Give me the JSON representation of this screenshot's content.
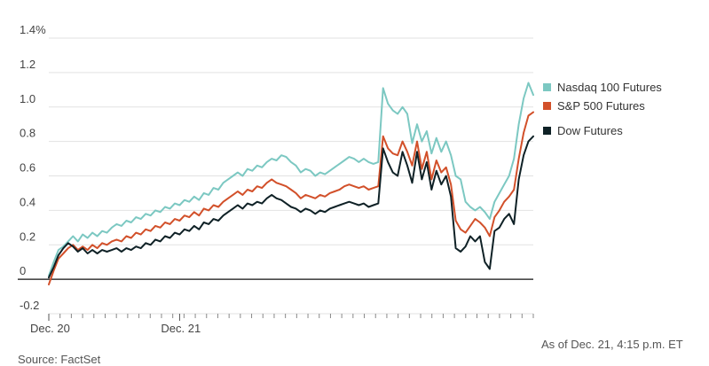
{
  "chart_data": {
    "type": "line",
    "title": "",
    "xlabel": "",
    "ylabel": "",
    "ylim": [
      -0.2,
      1.4
    ],
    "y_ticks": [
      {
        "value": 1.4,
        "label": "1.4%"
      },
      {
        "value": 1.2,
        "label": "1.2"
      },
      {
        "value": 1.0,
        "label": "1.0"
      },
      {
        "value": 0.8,
        "label": "0.8"
      },
      {
        "value": 0.6,
        "label": "0.6"
      },
      {
        "value": 0.4,
        "label": "0.4"
      },
      {
        "value": 0.2,
        "label": "0.2"
      },
      {
        "value": 0,
        "label": "0"
      },
      {
        "value": -0.2,
        "label": "-0.2"
      }
    ],
    "x_range": [
      0,
      100
    ],
    "x_labels": [
      {
        "x": 0,
        "label": "Dec. 20"
      },
      {
        "x": 27,
        "label": "Dec. 21"
      }
    ],
    "x_tick_count": 44,
    "grid": true,
    "legend_position": "right",
    "series": [
      {
        "name": "Nasdaq 100 Futures",
        "color": "#7cc8c2",
        "points": [
          [
            0,
            0.02
          ],
          [
            1,
            0.1
          ],
          [
            2,
            0.17
          ],
          [
            3,
            0.19
          ],
          [
            4,
            0.22
          ],
          [
            5,
            0.25
          ],
          [
            6,
            0.22
          ],
          [
            7,
            0.26
          ],
          [
            8,
            0.24
          ],
          [
            9,
            0.27
          ],
          [
            10,
            0.25
          ],
          [
            11,
            0.28
          ],
          [
            12,
            0.27
          ],
          [
            13,
            0.3
          ],
          [
            14,
            0.32
          ],
          [
            15,
            0.31
          ],
          [
            16,
            0.34
          ],
          [
            17,
            0.33
          ],
          [
            18,
            0.36
          ],
          [
            19,
            0.35
          ],
          [
            20,
            0.38
          ],
          [
            21,
            0.37
          ],
          [
            22,
            0.4
          ],
          [
            23,
            0.39
          ],
          [
            24,
            0.42
          ],
          [
            25,
            0.41
          ],
          [
            26,
            0.44
          ],
          [
            27,
            0.43
          ],
          [
            28,
            0.46
          ],
          [
            29,
            0.45
          ],
          [
            30,
            0.48
          ],
          [
            31,
            0.46
          ],
          [
            32,
            0.5
          ],
          [
            33,
            0.49
          ],
          [
            34,
            0.53
          ],
          [
            35,
            0.52
          ],
          [
            36,
            0.56
          ],
          [
            37,
            0.58
          ],
          [
            38,
            0.6
          ],
          [
            39,
            0.62
          ],
          [
            40,
            0.6
          ],
          [
            41,
            0.64
          ],
          [
            42,
            0.63
          ],
          [
            43,
            0.66
          ],
          [
            44,
            0.65
          ],
          [
            45,
            0.68
          ],
          [
            46,
            0.7
          ],
          [
            47,
            0.69
          ],
          [
            48,
            0.72
          ],
          [
            49,
            0.71
          ],
          [
            50,
            0.68
          ],
          [
            51,
            0.66
          ],
          [
            52,
            0.62
          ],
          [
            53,
            0.64
          ],
          [
            54,
            0.63
          ],
          [
            55,
            0.6
          ],
          [
            56,
            0.62
          ],
          [
            57,
            0.61
          ],
          [
            58,
            0.63
          ],
          [
            59,
            0.65
          ],
          [
            60,
            0.67
          ],
          [
            61,
            0.69
          ],
          [
            62,
            0.71
          ],
          [
            63,
            0.7
          ],
          [
            64,
            0.68
          ],
          [
            65,
            0.7
          ],
          [
            66,
            0.68
          ],
          [
            67,
            0.67
          ],
          [
            68,
            0.68
          ],
          [
            69,
            1.11
          ],
          [
            70,
            1.02
          ],
          [
            71,
            0.98
          ],
          [
            72,
            0.96
          ],
          [
            73,
            1.0
          ],
          [
            74,
            0.96
          ],
          [
            75,
            0.79
          ],
          [
            76,
            0.9
          ],
          [
            77,
            0.8
          ],
          [
            78,
            0.86
          ],
          [
            79,
            0.73
          ],
          [
            80,
            0.82
          ],
          [
            81,
            0.74
          ],
          [
            82,
            0.8
          ],
          [
            83,
            0.72
          ],
          [
            84,
            0.6
          ],
          [
            85,
            0.58
          ],
          [
            86,
            0.45
          ],
          [
            87,
            0.42
          ],
          [
            88,
            0.4
          ],
          [
            89,
            0.42
          ],
          [
            90,
            0.39
          ],
          [
            91,
            0.35
          ],
          [
            92,
            0.45
          ],
          [
            93,
            0.5
          ],
          [
            94,
            0.55
          ],
          [
            95,
            0.6
          ],
          [
            96,
            0.7
          ],
          [
            97,
            0.9
          ],
          [
            98,
            1.05
          ],
          [
            99,
            1.14
          ],
          [
            100,
            1.07
          ]
        ]
      },
      {
        "name": "S&P 500 Futures",
        "color": "#d2502a",
        "points": [
          [
            0,
            -0.03
          ],
          [
            1,
            0.05
          ],
          [
            2,
            0.12
          ],
          [
            3,
            0.15
          ],
          [
            4,
            0.18
          ],
          [
            5,
            0.2
          ],
          [
            6,
            0.17
          ],
          [
            7,
            0.19
          ],
          [
            8,
            0.17
          ],
          [
            9,
            0.2
          ],
          [
            10,
            0.18
          ],
          [
            11,
            0.21
          ],
          [
            12,
            0.2
          ],
          [
            13,
            0.22
          ],
          [
            14,
            0.23
          ],
          [
            15,
            0.22
          ],
          [
            16,
            0.25
          ],
          [
            17,
            0.24
          ],
          [
            18,
            0.27
          ],
          [
            19,
            0.26
          ],
          [
            20,
            0.29
          ],
          [
            21,
            0.28
          ],
          [
            22,
            0.31
          ],
          [
            23,
            0.3
          ],
          [
            24,
            0.33
          ],
          [
            25,
            0.32
          ],
          [
            26,
            0.35
          ],
          [
            27,
            0.34
          ],
          [
            28,
            0.37
          ],
          [
            29,
            0.36
          ],
          [
            30,
            0.39
          ],
          [
            31,
            0.37
          ],
          [
            32,
            0.41
          ],
          [
            33,
            0.4
          ],
          [
            34,
            0.43
          ],
          [
            35,
            0.42
          ],
          [
            36,
            0.45
          ],
          [
            37,
            0.47
          ],
          [
            38,
            0.49
          ],
          [
            39,
            0.51
          ],
          [
            40,
            0.49
          ],
          [
            41,
            0.52
          ],
          [
            42,
            0.51
          ],
          [
            43,
            0.54
          ],
          [
            44,
            0.53
          ],
          [
            45,
            0.56
          ],
          [
            46,
            0.58
          ],
          [
            47,
            0.56
          ],
          [
            48,
            0.55
          ],
          [
            49,
            0.54
          ],
          [
            50,
            0.52
          ],
          [
            51,
            0.5
          ],
          [
            52,
            0.47
          ],
          [
            53,
            0.49
          ],
          [
            54,
            0.48
          ],
          [
            55,
            0.47
          ],
          [
            56,
            0.49
          ],
          [
            57,
            0.48
          ],
          [
            58,
            0.5
          ],
          [
            59,
            0.51
          ],
          [
            60,
            0.52
          ],
          [
            61,
            0.54
          ],
          [
            62,
            0.55
          ],
          [
            63,
            0.54
          ],
          [
            64,
            0.53
          ],
          [
            65,
            0.54
          ],
          [
            66,
            0.52
          ],
          [
            67,
            0.53
          ],
          [
            68,
            0.54
          ],
          [
            69,
            0.83
          ],
          [
            70,
            0.76
          ],
          [
            71,
            0.73
          ],
          [
            72,
            0.72
          ],
          [
            73,
            0.8
          ],
          [
            74,
            0.74
          ],
          [
            75,
            0.66
          ],
          [
            76,
            0.8
          ],
          [
            77,
            0.64
          ],
          [
            78,
            0.74
          ],
          [
            79,
            0.58
          ],
          [
            80,
            0.69
          ],
          [
            81,
            0.62
          ],
          [
            82,
            0.65
          ],
          [
            83,
            0.55
          ],
          [
            84,
            0.34
          ],
          [
            85,
            0.29
          ],
          [
            86,
            0.27
          ],
          [
            87,
            0.31
          ],
          [
            88,
            0.35
          ],
          [
            89,
            0.33
          ],
          [
            90,
            0.3
          ],
          [
            91,
            0.25
          ],
          [
            92,
            0.36
          ],
          [
            93,
            0.4
          ],
          [
            94,
            0.45
          ],
          [
            95,
            0.48
          ],
          [
            96,
            0.52
          ],
          [
            97,
            0.7
          ],
          [
            98,
            0.85
          ],
          [
            99,
            0.95
          ],
          [
            100,
            0.97
          ]
        ]
      },
      {
        "name": "Dow Futures",
        "color": "#0f2126",
        "points": [
          [
            0,
            0.01
          ],
          [
            1,
            0.07
          ],
          [
            2,
            0.14
          ],
          [
            3,
            0.18
          ],
          [
            4,
            0.21
          ],
          [
            5,
            0.19
          ],
          [
            6,
            0.16
          ],
          [
            7,
            0.18
          ],
          [
            8,
            0.15
          ],
          [
            9,
            0.17
          ],
          [
            10,
            0.15
          ],
          [
            11,
            0.17
          ],
          [
            12,
            0.16
          ],
          [
            13,
            0.17
          ],
          [
            14,
            0.18
          ],
          [
            15,
            0.16
          ],
          [
            16,
            0.18
          ],
          [
            17,
            0.17
          ],
          [
            18,
            0.19
          ],
          [
            19,
            0.18
          ],
          [
            20,
            0.21
          ],
          [
            21,
            0.2
          ],
          [
            22,
            0.23
          ],
          [
            23,
            0.22
          ],
          [
            24,
            0.25
          ],
          [
            25,
            0.24
          ],
          [
            26,
            0.27
          ],
          [
            27,
            0.26
          ],
          [
            28,
            0.29
          ],
          [
            29,
            0.28
          ],
          [
            30,
            0.31
          ],
          [
            31,
            0.29
          ],
          [
            32,
            0.33
          ],
          [
            33,
            0.32
          ],
          [
            34,
            0.35
          ],
          [
            35,
            0.34
          ],
          [
            36,
            0.37
          ],
          [
            37,
            0.39
          ],
          [
            38,
            0.41
          ],
          [
            39,
            0.43
          ],
          [
            40,
            0.41
          ],
          [
            41,
            0.44
          ],
          [
            42,
            0.43
          ],
          [
            43,
            0.45
          ],
          [
            44,
            0.44
          ],
          [
            45,
            0.47
          ],
          [
            46,
            0.49
          ],
          [
            47,
            0.47
          ],
          [
            48,
            0.46
          ],
          [
            49,
            0.44
          ],
          [
            50,
            0.42
          ],
          [
            51,
            0.41
          ],
          [
            52,
            0.39
          ],
          [
            53,
            0.41
          ],
          [
            54,
            0.4
          ],
          [
            55,
            0.38
          ],
          [
            56,
            0.4
          ],
          [
            57,
            0.39
          ],
          [
            58,
            0.41
          ],
          [
            59,
            0.42
          ],
          [
            60,
            0.43
          ],
          [
            61,
            0.44
          ],
          [
            62,
            0.45
          ],
          [
            63,
            0.44
          ],
          [
            64,
            0.43
          ],
          [
            65,
            0.44
          ],
          [
            66,
            0.42
          ],
          [
            67,
            0.43
          ],
          [
            68,
            0.44
          ],
          [
            69,
            0.76
          ],
          [
            70,
            0.68
          ],
          [
            71,
            0.62
          ],
          [
            72,
            0.6
          ],
          [
            73,
            0.74
          ],
          [
            74,
            0.66
          ],
          [
            75,
            0.56
          ],
          [
            76,
            0.74
          ],
          [
            77,
            0.58
          ],
          [
            78,
            0.68
          ],
          [
            79,
            0.52
          ],
          [
            80,
            0.63
          ],
          [
            81,
            0.55
          ],
          [
            82,
            0.6
          ],
          [
            83,
            0.48
          ],
          [
            84,
            0.18
          ],
          [
            85,
            0.16
          ],
          [
            86,
            0.19
          ],
          [
            87,
            0.25
          ],
          [
            88,
            0.22
          ],
          [
            89,
            0.25
          ],
          [
            90,
            0.1
          ],
          [
            91,
            0.06
          ],
          [
            92,
            0.28
          ],
          [
            93,
            0.3
          ],
          [
            94,
            0.35
          ],
          [
            95,
            0.38
          ],
          [
            96,
            0.32
          ],
          [
            97,
            0.58
          ],
          [
            98,
            0.72
          ],
          [
            99,
            0.8
          ],
          [
            100,
            0.83
          ]
        ]
      }
    ]
  },
  "footer": {
    "as_of": "As of Dec. 21, 4:15 p.m. ET",
    "source": "Source: FactSet"
  }
}
